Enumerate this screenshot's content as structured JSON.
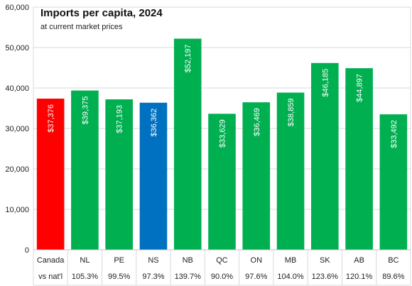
{
  "chart_data": {
    "type": "bar",
    "title": "Imports per capita, 2024",
    "subtitle": "at current market prices",
    "categories": [
      "Canada",
      "NL",
      "PE",
      "NS",
      "NB",
      "QC",
      "ON",
      "MB",
      "SK",
      "AB",
      "BC"
    ],
    "values": [
      37376,
      39375,
      37193,
      36362,
      52197,
      33629,
      36469,
      38859,
      46185,
      44897,
      33492
    ],
    "value_labels": [
      "$37,376",
      "$39,375",
      "$37,193",
      "$36,362",
      "$52,197",
      "$33,629",
      "$36,469",
      "$38,859",
      "$46,185",
      "$44,897",
      "$33,492"
    ],
    "ratio_row_label": "vs nat'l",
    "ratios": [
      "",
      "105.3%",
      "99.5%",
      "97.3%",
      "139.7%",
      "90.0%",
      "97.6%",
      "104.0%",
      "123.6%",
      "120.1%",
      "89.6%"
    ],
    "bar_colors": [
      "#ff0000",
      "#00b050",
      "#00b050",
      "#0070c0",
      "#00b050",
      "#00b050",
      "#00b050",
      "#00b050",
      "#00b050",
      "#00b050",
      "#00b050"
    ],
    "ylim": [
      0,
      60000
    ],
    "yticks": [
      0,
      10000,
      20000,
      30000,
      40000,
      50000,
      60000
    ],
    "ytick_labels": [
      "0",
      "10,000",
      "20,000",
      "30,000",
      "40,000",
      "50,000",
      "60,000"
    ],
    "grid": true,
    "legend": "none"
  }
}
